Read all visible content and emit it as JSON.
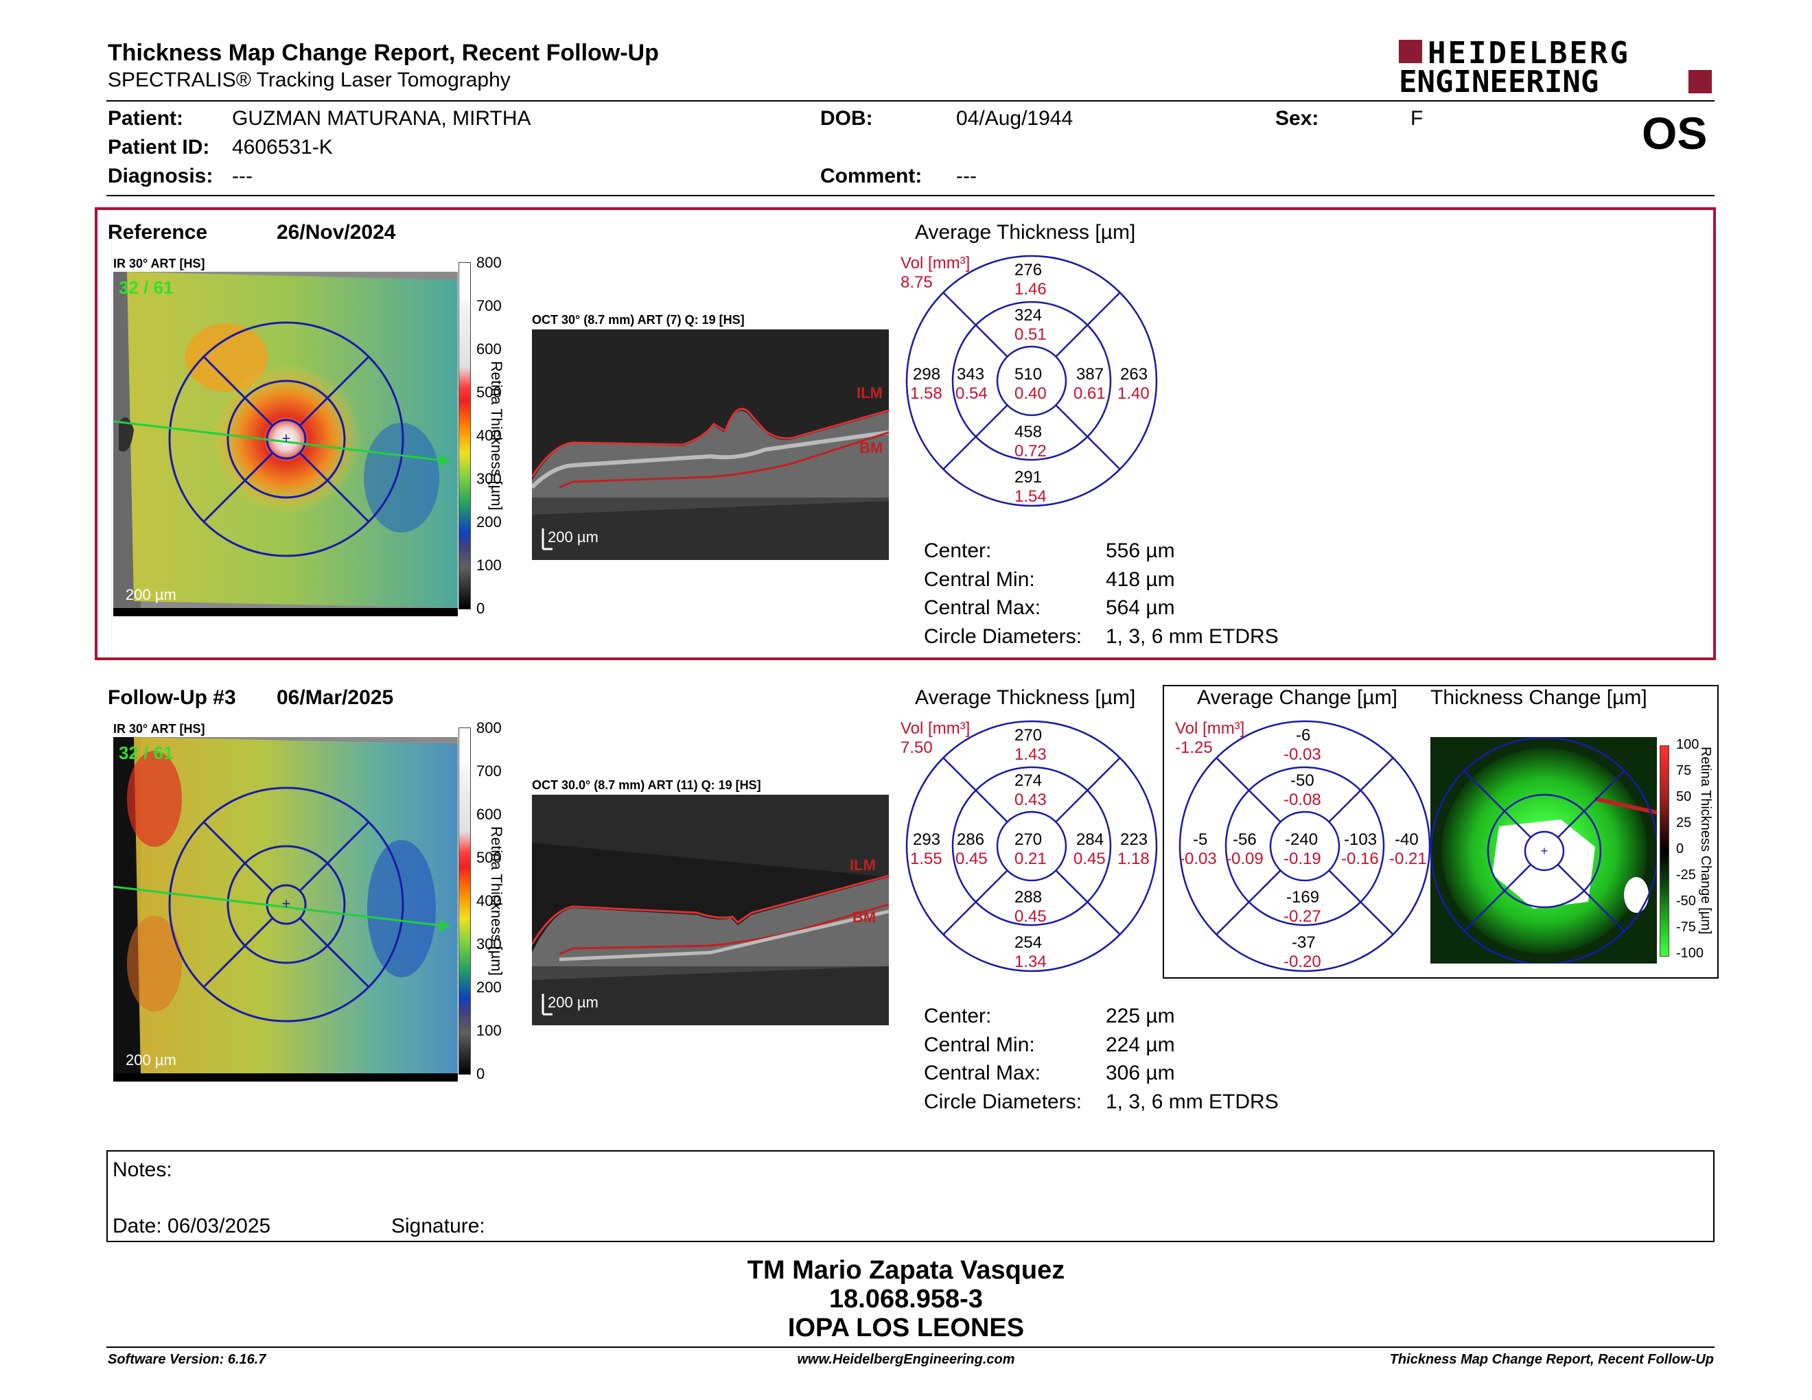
{
  "header": {
    "title": "Thickness Map Change Report, Recent Follow-Up",
    "subtitle": "SPECTRALIS® Tracking Laser Tomography",
    "logo_line1": "HEIDELBERG",
    "logo_line2": "ENGINEERING",
    "eye": "OS"
  },
  "patient": {
    "patient_label": "Patient:",
    "patient_value": "GUZMAN MATURANA, MIRTHA",
    "id_label": "Patient ID:",
    "id_value": "4606531-K",
    "diagnosis_label": "Diagnosis:",
    "diagnosis_value": "---",
    "dob_label": "DOB:",
    "dob_value": "04/Aug/1944",
    "comment_label": "Comment:",
    "comment_value": "---",
    "sex_label": "Sex:",
    "sex_value": "F"
  },
  "reference": {
    "label": "Reference",
    "date": "26/Nov/2024",
    "ir_title": "IR 30° ART [HS]",
    "ir_count": "32 / 61",
    "scale_bar": "200 µm",
    "oct_title": "OCT 30° (8.7 mm) ART (7) Q: 19 [HS]",
    "oct_scale": "200 µm",
    "ilm": "ILM",
    "bm": "BM",
    "colorbar_ticks": [
      "800",
      "700",
      "600",
      "500",
      "400",
      "300",
      "200",
      "100",
      "0"
    ],
    "colorbar_label": "Retina Thickness [µm]",
    "avg_title": "Average Thickness [µm]",
    "vol_label": "Vol [mm³]",
    "vol_total": "8.75",
    "etdrs": {
      "top_outer": [
        "276",
        "1.46"
      ],
      "top_inner": [
        "324",
        "0.51"
      ],
      "center": [
        "510",
        "0.40"
      ],
      "left_outer": [
        "298",
        "1.58"
      ],
      "left_inner": [
        "343",
        "0.54"
      ],
      "right_inner": [
        "387",
        "0.61"
      ],
      "right_outer": [
        "263",
        "1.40"
      ],
      "bottom_inner": [
        "458",
        "0.72"
      ],
      "bottom_outer": [
        "291",
        "1.54"
      ]
    },
    "stats": [
      {
        "label": "Center:",
        "value": "556 µm"
      },
      {
        "label": "Central Min:",
        "value": "418 µm"
      },
      {
        "label": "Central Max:",
        "value": "564 µm"
      },
      {
        "label": "Circle Diameters:",
        "value": "1, 3, 6 mm ETDRS"
      }
    ]
  },
  "followup": {
    "label": "Follow-Up #3",
    "date": "06/Mar/2025",
    "ir_title": "IR 30° ART [HS]",
    "ir_count": "32 / 61",
    "scale_bar": "200 µm",
    "oct_title": "OCT 30.0° (8.7 mm) ART (11) Q: 19 [HS]",
    "oct_scale": "200 µm",
    "ilm": "ILM",
    "bm": "BM",
    "colorbar_ticks": [
      "800",
      "700",
      "600",
      "500",
      "400",
      "300",
      "200",
      "100",
      "0"
    ],
    "colorbar_label": "Retina Thickness [µm]",
    "avg_title": "Average Thickness [µm]",
    "vol_label": "Vol [mm³]",
    "vol_total": "7.50",
    "etdrs": {
      "top_outer": [
        "270",
        "1.43"
      ],
      "top_inner": [
        "274",
        "0.43"
      ],
      "center": [
        "270",
        "0.21"
      ],
      "left_outer": [
        "293",
        "1.55"
      ],
      "left_inner": [
        "286",
        "0.45"
      ],
      "right_inner": [
        "284",
        "0.45"
      ],
      "right_outer": [
        "223",
        "1.18"
      ],
      "bottom_inner": [
        "288",
        "0.45"
      ],
      "bottom_outer": [
        "254",
        "1.34"
      ]
    },
    "change_title": "Average Change [µm]",
    "change_vol_label": "Vol [mm³]",
    "change_vol_total": "-1.25",
    "change_etdrs": {
      "top_outer": [
        "-6",
        "-0.03"
      ],
      "top_inner": [
        "-50",
        "-0.08"
      ],
      "center": [
        "-240",
        "-0.19"
      ],
      "left_outer": [
        "-5",
        "-0.03"
      ],
      "left_inner": [
        "-56",
        "-0.09"
      ],
      "right_inner": [
        "-103",
        "-0.16"
      ],
      "right_outer": [
        "-40",
        "-0.21"
      ],
      "bottom_inner": [
        "-169",
        "-0.27"
      ],
      "bottom_outer": [
        "-37",
        "-0.20"
      ]
    },
    "thickness_change_title": "Thickness Change [µm]",
    "change_ticks": [
      "100",
      "75",
      "50",
      "25",
      "0",
      "-25",
      "-50",
      "-75",
      "-100"
    ],
    "change_colorbar_label": "Retina Thickness Change [µm]",
    "stats": [
      {
        "label": "Center:",
        "value": "225 µm"
      },
      {
        "label": "Central Min:",
        "value": "224 µm"
      },
      {
        "label": "Central Max:",
        "value": "306 µm"
      },
      {
        "label": "Circle Diameters:",
        "value": "1, 3, 6 mm ETDRS"
      }
    ]
  },
  "notes": {
    "notes_label": "Notes:",
    "date_label": "Date: 06/03/2025",
    "signature_label": "Signature:"
  },
  "signer": {
    "name": "TM Mario Zapata Vasquez",
    "id": "18.068.958-3",
    "org": "IOPA LOS LEONES"
  },
  "footer": {
    "software": "Software Version: 6.16.7",
    "website": "www.HeidelbergEngineering.com",
    "report": "Thickness Map Change Report, Recent Follow-Up"
  },
  "colors": {
    "accent_red": "#b01030",
    "etdrs_blue": "#1a1aa8",
    "volume_red": "#d42020"
  }
}
